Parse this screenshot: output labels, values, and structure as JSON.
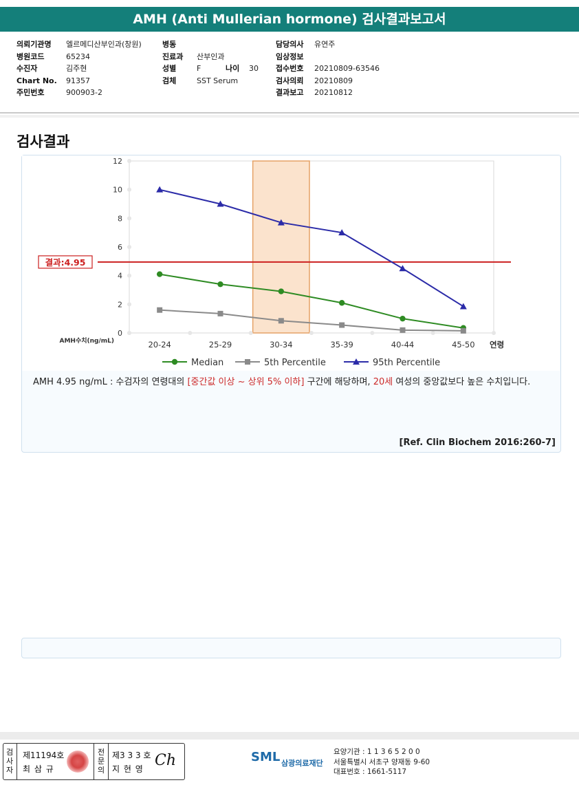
{
  "title": "AMH (Anti Mullerian hormone) 검사결과보고서",
  "info": {
    "col1": [
      {
        "label": "의뢰기관명",
        "value": "엘르메디산부인과(창원)"
      },
      {
        "label": "병원코드",
        "value": "65234"
      },
      {
        "label": "수진자",
        "value": "김주현"
      },
      {
        "label": "Chart No.",
        "value": "91357"
      },
      {
        "label": "주민번호",
        "value": "900903-2"
      }
    ],
    "col2": [
      {
        "label": "병동",
        "value": ""
      },
      {
        "label": "진료과",
        "value": "산부인과"
      },
      {
        "label": "성별",
        "value": "F"
      },
      {
        "label": "검체",
        "value": "SST Serum"
      }
    ],
    "age": {
      "label": "나이",
      "value": "30"
    },
    "col3": [
      {
        "label": "담당의사",
        "value": "유연주"
      },
      {
        "label": "임상정보",
        "value": ""
      },
      {
        "label": "접수번호",
        "value": "20210809-63546"
      },
      {
        "label": "검사의뢰",
        "value": "20210809"
      },
      {
        "label": "결과보고",
        "value": "20210812"
      }
    ]
  },
  "section_title": "검사결과",
  "chart_data": {
    "type": "line",
    "categories": [
      "20-24",
      "25-29",
      "30-34",
      "35-39",
      "40-44",
      "45-50"
    ],
    "series": [
      {
        "name": "Median",
        "values": [
          4.1,
          3.4,
          2.9,
          2.1,
          1.0,
          0.35
        ],
        "color": "#2e8b23",
        "marker": "circle"
      },
      {
        "name": "5th Percentile",
        "values": [
          1.6,
          1.35,
          0.85,
          0.55,
          0.2,
          0.15
        ],
        "color": "#8a8a8a",
        "marker": "square"
      },
      {
        "name": "95th Percentile",
        "values": [
          10.0,
          9.0,
          7.7,
          7.0,
          4.5,
          1.85
        ],
        "color": "#2b2ba8",
        "marker": "triangle"
      }
    ],
    "ylim": [
      0,
      12
    ],
    "yticks": [
      0,
      2,
      4,
      6,
      8,
      10,
      12
    ],
    "ylabel": "AMH수치(ng/mL)",
    "xlabel": "연령",
    "result_value": 4.95,
    "result_label": "결과:4.95",
    "result_color": "#cc1f1f",
    "highlight_category": "30-34",
    "highlight_color": "#fbe3cd",
    "legend_position": "bottom",
    "grid": true
  },
  "description": {
    "prefix": "AMH   4.95 ng/mL : 수검자의 연령대의 ",
    "range": "[중간값 이상 ~ 상위 5% 이하]",
    "middle": "  구간에 해당하며, ",
    "age": "20세",
    "suffix": " 여성의 중앙값보다 높은 수치입니다."
  },
  "reference": "[Ref. Clin Biochem 2016:260-7]",
  "footer": {
    "examiner_label": "검사자",
    "examiner_no": "제11194호",
    "examiner_name": "최 삼 규",
    "doctor_label": "전문의",
    "doctor_no": "제3 3 3 호",
    "doctor_name": "지 현 영",
    "signature": "Ch",
    "logo": "SML",
    "org_name": "삼광의료재단",
    "addr_lines": [
      "요양기관 : 1 1 3 6 5 2 0 0",
      "서울특별시 서초구 양재동 9-60",
      "대표번호 : 1661-5117"
    ]
  }
}
